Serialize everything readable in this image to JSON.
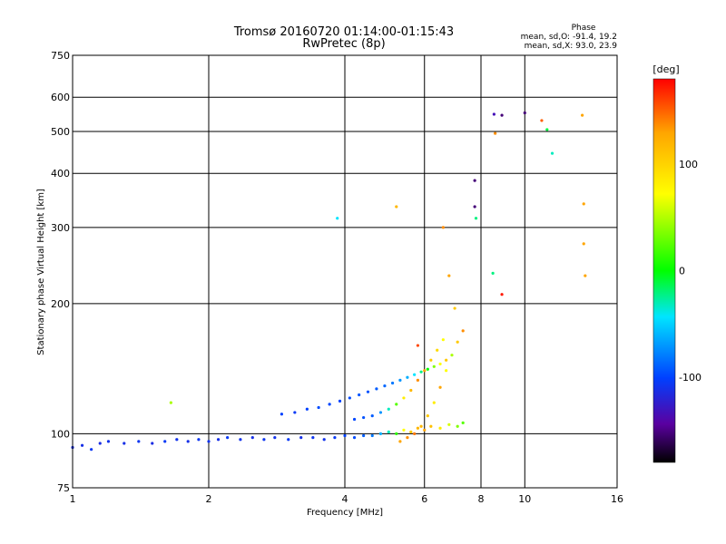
{
  "chart_data": {
    "type": "scatter",
    "title": "Tromsø 20160720 01:14:00-01:15:43",
    "subtitle": "RwPretec (8p)",
    "xlabel": "Frequency [MHz]",
    "ylabel": "Stationary phase Virtual Height [km]",
    "x_scale": "log2",
    "y_scale": "log",
    "xlim": [
      1,
      16
    ],
    "ylim": [
      75,
      750
    ],
    "x_ticks": [
      1,
      2,
      4,
      6,
      8,
      10,
      16
    ],
    "y_ticks": [
      75,
      100,
      200,
      300,
      400,
      500,
      600,
      750
    ],
    "grid": true,
    "stats": {
      "title": "Phase",
      "line1": "mean, sd,O: -91.4, 19.2",
      "line2": "mean, sd,X:  93.0, 23.9"
    },
    "colorbar": {
      "label": "[deg]",
      "range": [
        -180,
        180
      ],
      "ticks": [
        100,
        0,
        -100
      ],
      "colors": [
        "#ff0000",
        "#ffa500",
        "#ffff00",
        "#00ff00",
        "#00e5ff",
        "#0040ff",
        "#5a00a0",
        "#000000"
      ]
    },
    "series": [
      {
        "x": [
          1.0,
          1.05,
          1.1,
          1.15,
          1.2,
          1.3,
          1.4,
          1.5,
          1.6,
          1.7,
          1.8,
          1.9,
          2.0,
          2.1,
          2.2,
          2.35,
          2.5,
          2.65,
          2.8,
          3.0,
          3.2,
          3.4,
          3.6,
          3.8,
          4.0,
          4.2,
          4.4,
          4.6,
          4.8,
          5.0,
          5.2,
          5.4,
          5.6,
          5.8,
          6.0,
          6.2,
          6.5,
          6.8,
          7.1,
          7.3,
          2.9,
          3.1,
          3.3,
          3.5,
          3.7,
          3.9,
          4.1,
          4.3,
          4.5,
          4.7,
          4.9,
          5.1,
          5.3,
          5.5,
          5.7,
          5.9,
          6.1,
          6.3,
          6.5,
          6.7,
          4.2,
          4.4,
          4.6,
          4.8,
          5.0,
          5.2,
          5.4,
          5.6,
          5.8,
          6.0,
          6.2,
          6.4,
          6.6,
          5.3,
          5.5,
          5.7,
          5.9,
          6.1,
          6.3,
          6.5,
          6.7,
          6.9,
          7.1,
          7.3,
          1.65,
          3.85,
          5.2,
          5.8,
          6.6,
          6.8,
          7.0,
          7.75,
          7.75,
          7.8,
          8.55,
          8.6,
          8.9,
          10.0,
          10.9,
          11.2,
          11.5,
          13.4,
          13.5,
          13.5,
          13.6,
          8.5,
          8.9
        ],
        "y": [
          93,
          94,
          92,
          95,
          96,
          95,
          96,
          95,
          96,
          97,
          96,
          97,
          96,
          97,
          98,
          97,
          98,
          97,
          98,
          97,
          98,
          98,
          97,
          98,
          99,
          98,
          99,
          99,
          100,
          101,
          100,
          102,
          101,
          103,
          102,
          104,
          103,
          105,
          104,
          106,
          111,
          112,
          114,
          115,
          117,
          119,
          121,
          123,
          125,
          127,
          129,
          131,
          133,
          135,
          137,
          139,
          141,
          143,
          145,
          148,
          108,
          109,
          110,
          112,
          114,
          117,
          121,
          126,
          133,
          140,
          148,
          156,
          165,
          96,
          98,
          100,
          104,
          110,
          118,
          128,
          140,
          152,
          163,
          173,
          118,
          315,
          335,
          160,
          300,
          232,
          195,
          385,
          335,
          315,
          548,
          495,
          545,
          552,
          530,
          505,
          445,
          545,
          340,
          275,
          232,
          235,
          210
        ],
        "phase": [
          -110,
          -110,
          -105,
          -112,
          -108,
          -110,
          -106,
          -112,
          -104,
          -108,
          -110,
          -106,
          -108,
          -110,
          -104,
          -108,
          -110,
          -106,
          -108,
          -104,
          -110,
          -106,
          -108,
          -104,
          -100,
          -96,
          -90,
          -80,
          -60,
          -30,
          10,
          60,
          90,
          100,
          110,
          95,
          70,
          50,
          30,
          20,
          -100,
          -104,
          -100,
          -96,
          -98,
          -100,
          -96,
          -92,
          -94,
          -90,
          -86,
          -80,
          -70,
          -60,
          -40,
          -20,
          0,
          30,
          60,
          90,
          -98,
          -94,
          -90,
          -70,
          -30,
          20,
          70,
          100,
          120,
          110,
          90,
          80,
          60,
          110,
          120,
          130,
          100,
          90,
          70,
          110,
          60,
          40,
          90,
          120,
          40,
          -40,
          100,
          150,
          120,
          110,
          90,
          -150,
          -150,
          -20,
          -130,
          120,
          -150,
          -150,
          140,
          -10,
          -30,
          110,
          110,
          110,
          110,
          -20,
          170
        ]
      }
    ]
  }
}
